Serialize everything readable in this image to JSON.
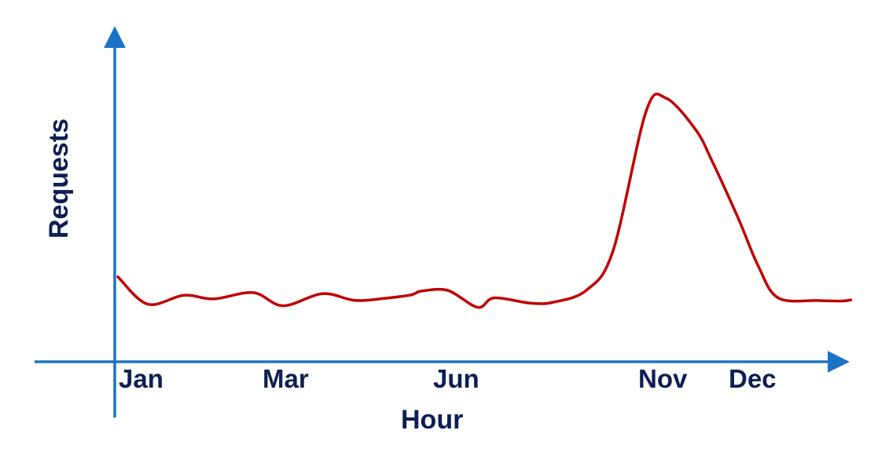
{
  "chart_data": {
    "type": "line",
    "title": "",
    "xlabel": "Hour",
    "ylabel": "Requests",
    "x_tick_labels": [
      "Jan",
      "Mar",
      "Jun",
      "Nov",
      "Dec"
    ],
    "grid": false,
    "legend": "none",
    "colors": {
      "axis": "#1a73c5",
      "line": "#c00000",
      "text": "#0d1f52"
    },
    "series": [
      {
        "x": [
          0,
          0.45,
          1.0,
          1.45,
          2.05,
          2.5,
          3.1,
          3.6,
          4.1,
          4.45,
          4.6,
          5.0,
          5.45,
          5.7,
          6.25,
          6.6,
          7.1,
          7.5,
          8.0,
          8.3,
          8.75,
          9.0,
          9.4,
          9.7,
          10.0,
          10.6,
          10.95,
          11.1
        ],
        "y": [
          16,
          10.8,
          12.5,
          11.8,
          13.0,
          10.5,
          12.8,
          11.5,
          12.0,
          12.6,
          13.3,
          13.4,
          10.2,
          12.0,
          11.0,
          11.2,
          13.5,
          21.0,
          47.5,
          50.0,
          44.0,
          38.0,
          27.0,
          18.0,
          12.0,
          11.5,
          11.4,
          11.6
        ]
      }
    ]
  }
}
